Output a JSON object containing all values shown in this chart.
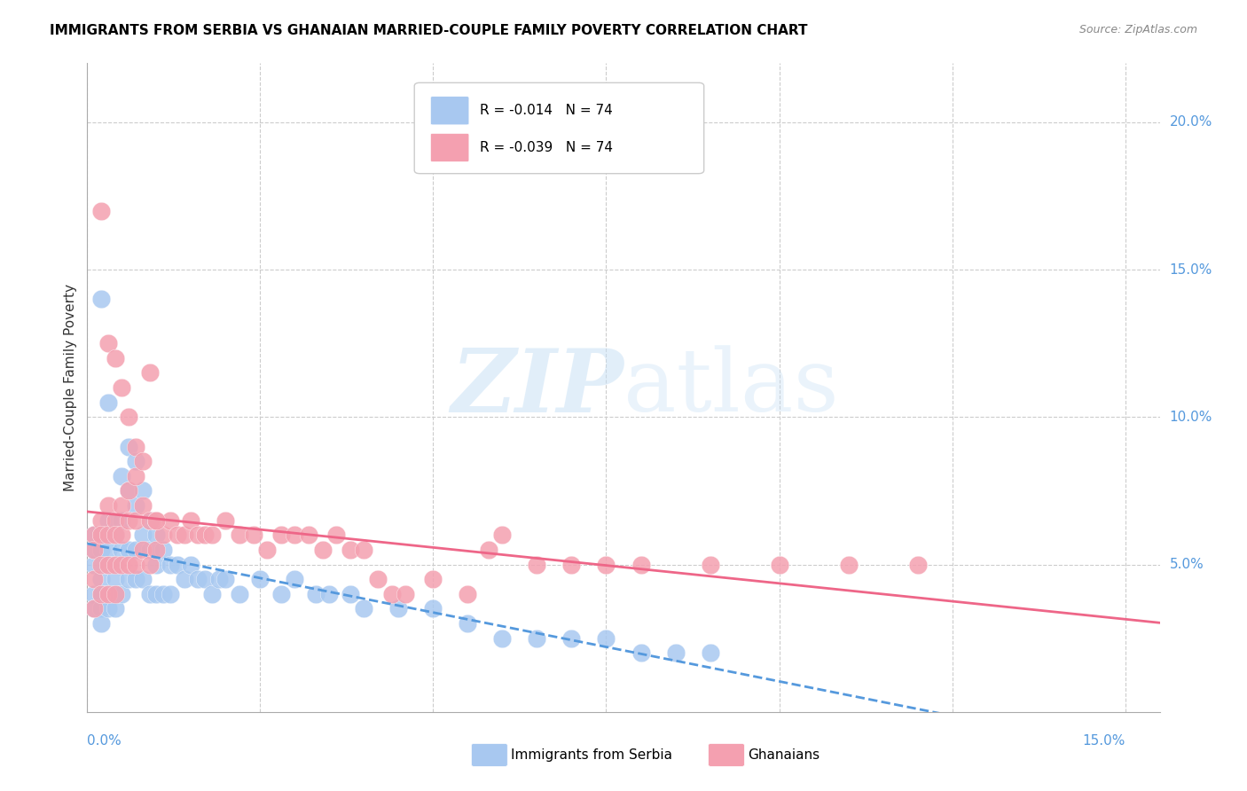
{
  "title": "IMMIGRANTS FROM SERBIA VS GHANAIAN MARRIED-COUPLE FAMILY POVERTY CORRELATION CHART",
  "source": "Source: ZipAtlas.com",
  "ylabel": "Married-Couple Family Poverty",
  "legend1_label": "Immigrants from Serbia",
  "legend2_label": "Ghanaians",
  "r1": "-0.014",
  "n1": "74",
  "r2": "-0.039",
  "n2": "74",
  "serbia_color": "#a8c8f0",
  "ghana_color": "#f4a0b0",
  "trend1_color": "#5599dd",
  "trend2_color": "#ee6688",
  "watermark_zip": "ZIP",
  "watermark_atlas": "atlas",
  "xlim": [
    0.0,
    0.155
  ],
  "ylim": [
    0.0,
    0.22
  ],
  "serbia_x": [
    0.001,
    0.001,
    0.001,
    0.001,
    0.001,
    0.002,
    0.002,
    0.002,
    0.002,
    0.002,
    0.002,
    0.003,
    0.003,
    0.003,
    0.003,
    0.003,
    0.004,
    0.004,
    0.004,
    0.004,
    0.004,
    0.005,
    0.005,
    0.005,
    0.005,
    0.006,
    0.006,
    0.006,
    0.006,
    0.007,
    0.007,
    0.007,
    0.007,
    0.008,
    0.008,
    0.008,
    0.009,
    0.009,
    0.009,
    0.01,
    0.01,
    0.01,
    0.011,
    0.011,
    0.012,
    0.012,
    0.013,
    0.014,
    0.015,
    0.016,
    0.017,
    0.018,
    0.019,
    0.02,
    0.022,
    0.025,
    0.028,
    0.03,
    0.033,
    0.035,
    0.038,
    0.04,
    0.045,
    0.05,
    0.055,
    0.06,
    0.065,
    0.07,
    0.075,
    0.08,
    0.085,
    0.09,
    0.002,
    0.003
  ],
  "serbia_y": [
    0.05,
    0.055,
    0.06,
    0.04,
    0.035,
    0.055,
    0.06,
    0.045,
    0.04,
    0.035,
    0.03,
    0.065,
    0.055,
    0.05,
    0.04,
    0.035,
    0.06,
    0.05,
    0.045,
    0.04,
    0.035,
    0.08,
    0.065,
    0.055,
    0.04,
    0.09,
    0.075,
    0.055,
    0.045,
    0.085,
    0.07,
    0.055,
    0.045,
    0.075,
    0.06,
    0.045,
    0.065,
    0.055,
    0.04,
    0.06,
    0.05,
    0.04,
    0.055,
    0.04,
    0.05,
    0.04,
    0.05,
    0.045,
    0.05,
    0.045,
    0.045,
    0.04,
    0.045,
    0.045,
    0.04,
    0.045,
    0.04,
    0.045,
    0.04,
    0.04,
    0.04,
    0.035,
    0.035,
    0.035,
    0.03,
    0.025,
    0.025,
    0.025,
    0.025,
    0.02,
    0.02,
    0.02,
    0.14,
    0.105
  ],
  "ghana_x": [
    0.001,
    0.001,
    0.001,
    0.001,
    0.002,
    0.002,
    0.002,
    0.002,
    0.003,
    0.003,
    0.003,
    0.003,
    0.004,
    0.004,
    0.004,
    0.004,
    0.005,
    0.005,
    0.005,
    0.006,
    0.006,
    0.006,
    0.007,
    0.007,
    0.007,
    0.008,
    0.008,
    0.009,
    0.009,
    0.01,
    0.01,
    0.011,
    0.012,
    0.013,
    0.014,
    0.015,
    0.016,
    0.017,
    0.018,
    0.02,
    0.022,
    0.024,
    0.026,
    0.028,
    0.03,
    0.032,
    0.034,
    0.036,
    0.038,
    0.04,
    0.042,
    0.044,
    0.046,
    0.05,
    0.055,
    0.058,
    0.06,
    0.065,
    0.07,
    0.075,
    0.08,
    0.09,
    0.1,
    0.11,
    0.12,
    0.002,
    0.003,
    0.004,
    0.005,
    0.006,
    0.007,
    0.008,
    0.009,
    0.01
  ],
  "ghana_y": [
    0.06,
    0.055,
    0.045,
    0.035,
    0.065,
    0.06,
    0.05,
    0.04,
    0.07,
    0.06,
    0.05,
    0.04,
    0.065,
    0.06,
    0.05,
    0.04,
    0.07,
    0.06,
    0.05,
    0.075,
    0.065,
    0.05,
    0.08,
    0.065,
    0.05,
    0.07,
    0.055,
    0.065,
    0.05,
    0.065,
    0.055,
    0.06,
    0.065,
    0.06,
    0.06,
    0.065,
    0.06,
    0.06,
    0.06,
    0.065,
    0.06,
    0.06,
    0.055,
    0.06,
    0.06,
    0.06,
    0.055,
    0.06,
    0.055,
    0.055,
    0.045,
    0.04,
    0.04,
    0.045,
    0.04,
    0.055,
    0.06,
    0.05,
    0.05,
    0.05,
    0.05,
    0.05,
    0.05,
    0.05,
    0.05,
    0.17,
    0.125,
    0.12,
    0.11,
    0.1,
    0.09,
    0.085,
    0.115,
    0.065
  ]
}
